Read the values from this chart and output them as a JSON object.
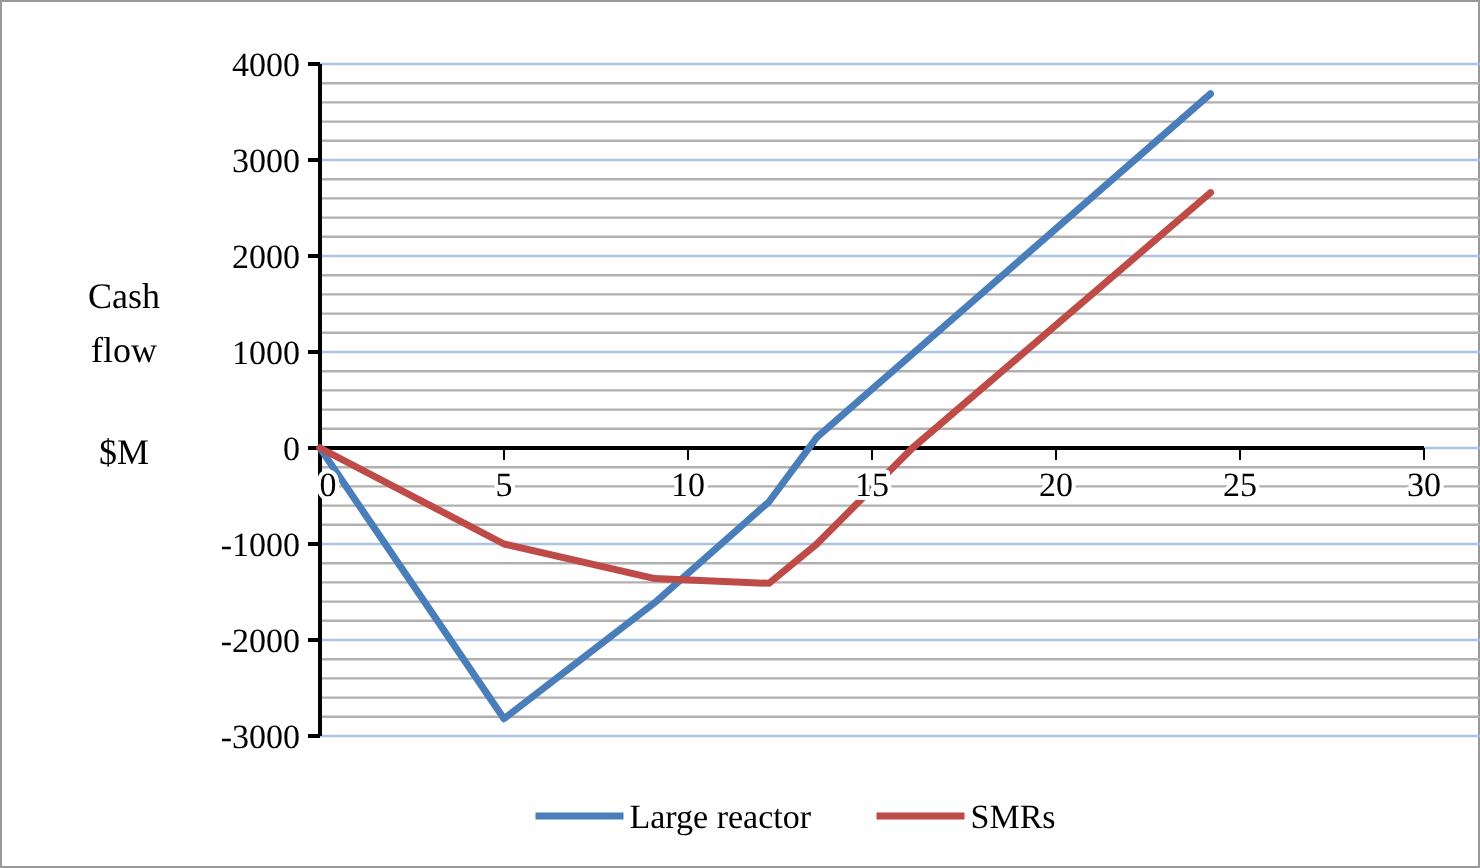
{
  "chart_data": {
    "type": "line",
    "ylabel": "Cash flow $M",
    "xlim": [
      0,
      30
    ],
    "xticks": [
      0,
      5,
      10,
      15,
      20,
      25,
      30
    ],
    "ylim": [
      -3000,
      4000
    ],
    "yticks": [
      -3000,
      {
        "value": -2800,
        "label": null
      },
      {
        "value": -2600,
        "label": null
      },
      {
        "value": -2400,
        "label": null
      },
      {
        "value": -2200,
        "label": null
      },
      -2000,
      {
        "value": -1800,
        "label": null
      },
      {
        "value": -1600,
        "label": null
      },
      {
        "value": -1400,
        "label": null
      },
      {
        "value": -1200,
        "label": null
      },
      -1000,
      {
        "value": -800,
        "label": null
      },
      {
        "value": -600,
        "label": null
      },
      {
        "value": -400,
        "label": null
      },
      {
        "value": -200,
        "label": null
      },
      0,
      {
        "value": 200,
        "label": null
      },
      {
        "value": 400,
        "label": null
      },
      {
        "value": 600,
        "label": null
      },
      {
        "value": 800,
        "label": null
      },
      1000,
      {
        "value": 1200,
        "label": null
      },
      {
        "value": 1400,
        "label": null
      },
      {
        "value": 1600,
        "label": null
      },
      {
        "value": 1800,
        "label": null
      },
      2000,
      {
        "value": 2200,
        "label": null
      },
      {
        "value": 2400,
        "label": null
      },
      {
        "value": 2600,
        "label": null
      },
      {
        "value": 2800,
        "label": null
      },
      3000,
      {
        "value": 3200,
        "label": null
      },
      {
        "value": 3400,
        "label": null
      },
      {
        "value": 3600,
        "label": null
      },
      {
        "value": 3800,
        "label": null
      },
      4000
    ],
    "grid": "y",
    "legend": "bottom",
    "marker": "none",
    "line_style": "solid",
    "series": [
      {
        "name": "Large reactor",
        "color": "#4a7ebb",
        "x": [
          0,
          5,
          9.1,
          12.2,
          13.5,
          24.2
        ],
        "values": [
          0,
          -2820,
          -1610,
          -560,
          110,
          3690
        ]
      },
      {
        "name": "SMRs",
        "color": "#be4b48",
        "x": [
          0,
          5,
          9.1,
          12.2,
          13.5,
          16.1,
          24.2
        ],
        "values": [
          0,
          -1000,
          -1360,
          -1410,
          -1000,
          0,
          2660
        ]
      }
    ]
  }
}
